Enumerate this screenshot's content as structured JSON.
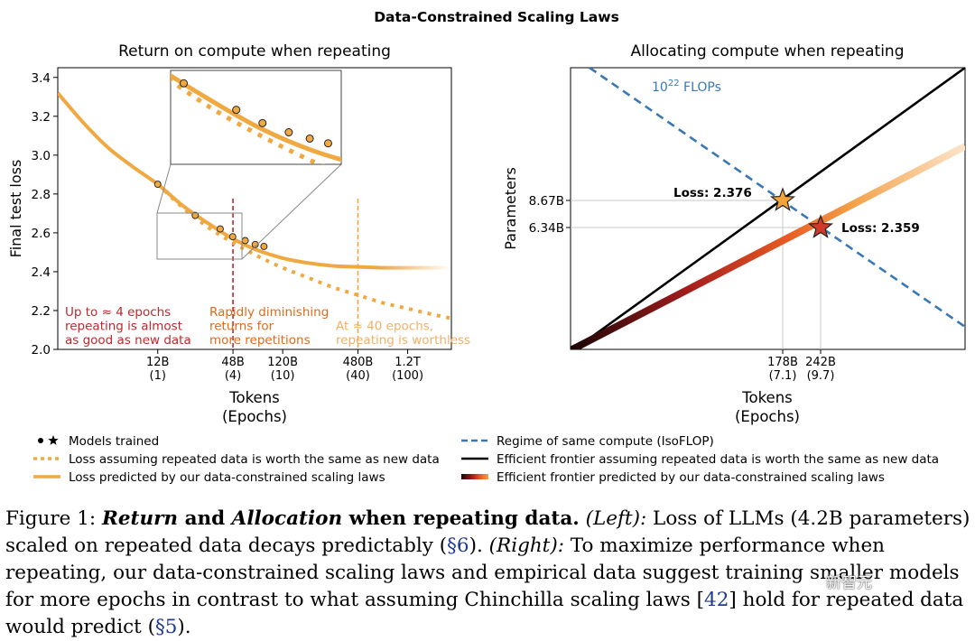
{
  "figure_title": "Data-Constrained Scaling Laws",
  "chart_data": [
    {
      "type": "line",
      "title": "Return on compute when repeating",
      "xlabel": "Tokens",
      "xlabel2": "(Epochs)",
      "ylabel": "Final test loss",
      "ylim": [
        2.0,
        3.45
      ],
      "yticks": [
        "2.0",
        "2.2",
        "2.4",
        "2.6",
        "2.8",
        "3.0",
        "3.2",
        "3.4"
      ],
      "xticks": [
        {
          "label": "12B",
          "sub": "(1)",
          "epochs": 1
        },
        {
          "label": "48B",
          "sub": "(4)",
          "epochs": 4
        },
        {
          "label": "120B",
          "sub": "(10)",
          "epochs": 10
        },
        {
          "label": "480B",
          "sub": "(40)",
          "epochs": 40
        },
        {
          "label": "1.2T",
          "sub": "(100)",
          "epochs": 100
        }
      ],
      "x_scale": "log10(epochs)",
      "xlim": [
        -0.8,
        2.35
      ],
      "series": [
        {
          "name": "Loss predicted by our data-constrained scaling laws",
          "style": "solid",
          "x": [
            -0.8,
            -0.6,
            -0.4,
            -0.2,
            0.0,
            0.2,
            0.4,
            0.6,
            0.8,
            1.0,
            1.2,
            1.4,
            1.6,
            1.8,
            2.0,
            2.2,
            2.35
          ],
          "y": [
            3.32,
            3.17,
            3.04,
            2.94,
            2.85,
            2.74,
            2.65,
            2.57,
            2.51,
            2.47,
            2.445,
            2.43,
            2.425,
            2.42,
            2.42,
            2.42,
            2.42
          ]
        },
        {
          "name": "Loss assuming repeated data is worth the same as new data",
          "style": "dotted",
          "x": [
            0.0,
            0.2,
            0.4,
            0.6,
            0.8,
            1.0,
            1.2,
            1.4,
            1.6,
            1.8,
            2.0,
            2.2,
            2.35
          ],
          "y": [
            2.85,
            2.73,
            2.63,
            2.55,
            2.48,
            2.42,
            2.37,
            2.32,
            2.28,
            2.24,
            2.21,
            2.18,
            2.16
          ]
        }
      ],
      "points": {
        "x": [
          0.0,
          0.3,
          0.5,
          0.6,
          0.7,
          0.78,
          0.85
        ],
        "y": [
          2.85,
          2.69,
          2.62,
          2.58,
          2.56,
          2.54,
          2.53
        ]
      },
      "vlines": [
        {
          "epochs": 4,
          "color": "#c0282b"
        },
        {
          "epochs": 40,
          "color": "#f0a54a"
        }
      ],
      "annotations": [
        {
          "lines": [
            "Up to ≈ 4 epochs",
            "repeating is almost",
            "as good as new data"
          ],
          "color": "#c0282b"
        },
        {
          "lines": [
            "Rapidly diminishing",
            "returns for",
            "more repetitions"
          ],
          "color": "#e06a1c"
        },
        {
          "lines": [
            "At ≈ 40 epochs,",
            "repeating is worthless"
          ],
          "color": "#f2b066"
        }
      ]
    },
    {
      "type": "line",
      "title": "Allocating compute when repeating",
      "xlabel": "Tokens",
      "xlabel2": "(Epochs)",
      "ylabel": "Parameters",
      "yticks": [
        "8.67B",
        "6.34B"
      ],
      "xticks": [
        {
          "label": "178B",
          "sub": "(7.1)"
        },
        {
          "label": "242B",
          "sub": "(9.7)"
        }
      ],
      "isoflop_label": "10",
      "isoflop_sup": "22",
      "isoflop_suffix": " FLOPs",
      "stars": [
        {
          "label": "Loss: 2.376",
          "color": "#f2a43a",
          "tokens": "178B",
          "params": "8.67B"
        },
        {
          "label": "Loss: 2.359",
          "color": "#d03a2a",
          "tokens": "242B",
          "params": "6.34B"
        }
      ]
    }
  ],
  "legend_left": [
    {
      "text": "Models trained",
      "marker": "dot-star"
    },
    {
      "text": "Loss assuming repeated data is worth the same as new data",
      "marker": "dotted"
    },
    {
      "text": "Loss predicted by our data-constrained scaling laws",
      "marker": "solid"
    }
  ],
  "legend_right": [
    {
      "text": "Regime of same compute (IsoFLOP)",
      "marker": "dashed"
    },
    {
      "text": "Efficient frontier assuming repeated data is worth the same as new data",
      "marker": "black"
    },
    {
      "text": "Efficient frontier predicted by our data-constrained scaling laws",
      "marker": "gradient"
    }
  ],
  "caption": {
    "p1": "Figure 1: ",
    "p2": "Return",
    "p3": " and ",
    "p4": "Allocation",
    "p5": " when repeating data.",
    "p6": " (Left):",
    "p7": " Loss of LLMs (4.2B parameters) scaled on repeated data decays predictably (",
    "p8": "§6",
    "p9": "). ",
    "p10": "(Right):",
    "p11": " To maximize performance when repeating, our data-constrained scaling laws and empirical data suggest training smaller models for more epochs in contrast to what assuming Chinchilla scaling laws [",
    "p12": "42",
    "p13": "] hold for repeated data would predict (",
    "p14": "§5",
    "p15": ")."
  },
  "watermark": "新智元",
  "colors": {
    "orange": "#f0a840",
    "red": "#c0282b",
    "blue": "#3a78b4",
    "black": "#000000"
  }
}
